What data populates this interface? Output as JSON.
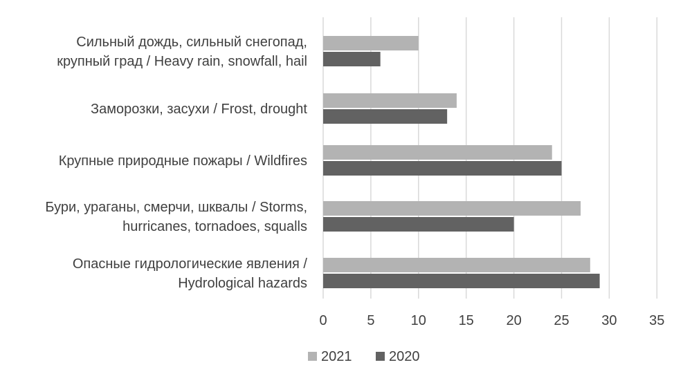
{
  "chart_data": {
    "type": "bar",
    "orientation": "horizontal",
    "categories": [
      [
        "Сильный дождь, сильный снегопад,",
        "крупный град / Heavy rain, snowfall, hail"
      ],
      [
        "Заморозки, засухи / Frost, drought"
      ],
      [
        "Крупные природные пожары / Wildfires"
      ],
      [
        "Бури, ураганы, смерчи, шквалы / Storms,",
        "hurricanes, tornadoes, squalls"
      ],
      [
        "Опасные гидрологические явления  /",
        "Hydrological hazards"
      ]
    ],
    "series": [
      {
        "name": "2021",
        "color": "#b3b3b3",
        "values": [
          10,
          14,
          24,
          27,
          28
        ]
      },
      {
        "name": "2020",
        "color": "#626262",
        "values": [
          6,
          13,
          25,
          20,
          29
        ]
      }
    ],
    "xlim": [
      0,
      35
    ],
    "xticks": [
      0,
      5,
      10,
      15,
      20,
      25,
      30,
      35
    ],
    "grid": true,
    "legend": "bottom"
  }
}
